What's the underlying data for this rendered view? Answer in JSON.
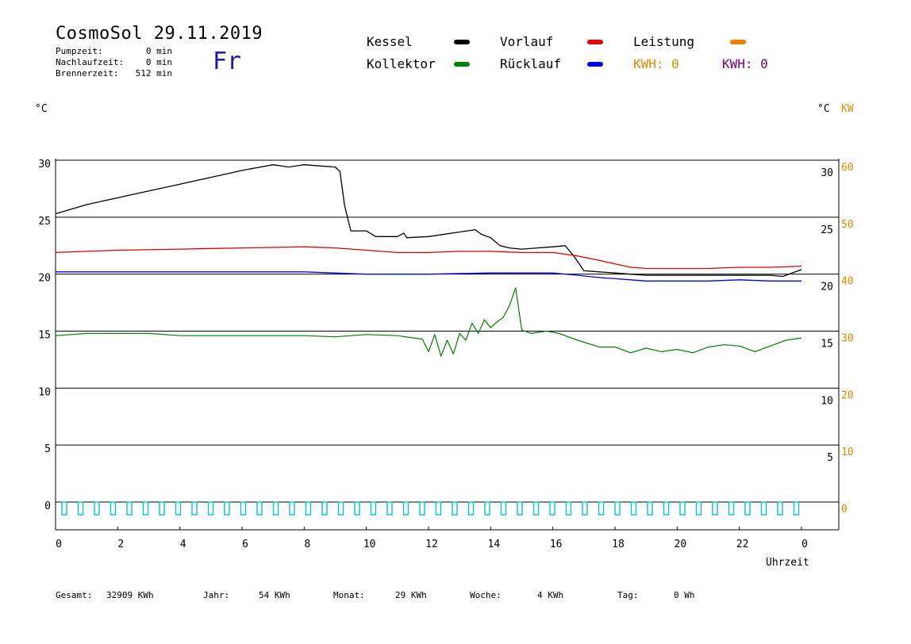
{
  "header": {
    "title": "CosmoSol 29.11.2019",
    "weekday": "Fr",
    "stats": [
      {
        "label": "Pumpzeit:",
        "value": "0 min"
      },
      {
        "label": "Nachlaufzeit:",
        "value": "0 min"
      },
      {
        "label": "Brennerzeit:",
        "value": "512 min"
      }
    ]
  },
  "legend": {
    "items": [
      {
        "label": "Kessel",
        "color": "#000000"
      },
      {
        "label": "Vorlauf",
        "color": "#e00000"
      },
      {
        "label": "Leistung",
        "color": "#f08000"
      },
      {
        "label": "Kollektor",
        "color": "#008000"
      },
      {
        "label": "Rücklauf",
        "color": "#0000e0"
      }
    ],
    "kwh_orange": {
      "text": "KWH: 0",
      "color": "#e08a00"
    },
    "kwh_purple": {
      "text": "KWH: 0",
      "color": "#800080"
    }
  },
  "axes": {
    "left_unit": "°C",
    "right_unit": "°C",
    "right_unit2": "KW",
    "x_label": "Uhrzeit",
    "right2_color": "#e08a00"
  },
  "footer": [
    {
      "label": "Gesamt:",
      "value": "32909 KWh"
    },
    {
      "label": "Jahr:",
      "value": "54 KWh"
    },
    {
      "label": "Monat:",
      "value": "29 KWh"
    },
    {
      "label": "Woche:",
      "value": "4 KWh"
    },
    {
      "label": "Tag:",
      "value": "0 Wh"
    }
  ],
  "chart_data": {
    "type": "line",
    "xlabel": "Uhrzeit",
    "ylabel": "°C",
    "xlim": [
      0,
      24
    ],
    "ylim": [
      -2,
      30
    ],
    "y2lim": [
      -4,
      60
    ],
    "grid": true,
    "x_ticks": [
      "0",
      "2",
      "4",
      "6",
      "8",
      "10",
      "12",
      "14",
      "16",
      "18",
      "20",
      "22",
      "0"
    ],
    "y_ticks_left": [
      "0",
      "5",
      "10",
      "15",
      "20",
      "25",
      "30"
    ],
    "y_ticks_right": [
      "5",
      "10",
      "15",
      "20",
      "25",
      "30"
    ],
    "y2_ticks": [
      "0",
      "10",
      "20",
      "30",
      "40",
      "50",
      "60"
    ],
    "series": [
      {
        "name": "Kessel",
        "color": "#000000",
        "x": [
          0,
          0.5,
          1,
          2,
          3,
          4,
          5,
          6,
          7,
          7.5,
          8,
          8.5,
          9,
          9.15,
          9.3,
          9.5,
          10,
          10.3,
          11,
          11.2,
          11.3,
          12,
          13,
          13.5,
          13.7,
          14,
          14.3,
          14.6,
          15,
          15.5,
          16,
          16.4,
          16.7,
          17,
          17.5,
          18,
          18.5,
          19,
          20,
          21,
          22,
          23,
          23.4,
          24
        ],
        "y": [
          25.3,
          25.7,
          26.1,
          26.7,
          27.3,
          27.9,
          28.5,
          29.1,
          29.6,
          29.4,
          29.6,
          29.5,
          29.4,
          29.0,
          26.0,
          23.8,
          23.8,
          23.3,
          23.3,
          23.6,
          23.2,
          23.3,
          23.7,
          23.9,
          23.5,
          23.2,
          22.5,
          22.3,
          22.2,
          22.3,
          22.4,
          22.5,
          21.5,
          20.3,
          20.2,
          20.1,
          20.0,
          19.9,
          19.9,
          19.9,
          19.9,
          19.9,
          19.8,
          20.4
        ]
      },
      {
        "name": "Vorlauf",
        "color": "#e00000",
        "x": [
          0,
          1,
          2,
          4,
          6,
          8,
          9,
          10,
          11,
          12,
          13,
          14,
          15,
          16,
          16.8,
          17.5,
          18,
          18.5,
          19,
          20,
          21,
          22,
          23,
          24
        ],
        "y": [
          21.9,
          22.0,
          22.1,
          22.2,
          22.3,
          22.4,
          22.3,
          22.1,
          21.9,
          21.9,
          22.0,
          22.0,
          21.9,
          21.9,
          21.6,
          21.2,
          20.9,
          20.6,
          20.5,
          20.5,
          20.5,
          20.6,
          20.6,
          20.7
        ]
      },
      {
        "name": "Rücklauf",
        "color": "#0000e0",
        "x": [
          0,
          2,
          4,
          6,
          8,
          10,
          12,
          14,
          16,
          16.8,
          17.5,
          18,
          18.5,
          19,
          20,
          21,
          22,
          23,
          24
        ],
        "y": [
          20.2,
          20.2,
          20.2,
          20.2,
          20.2,
          20.0,
          20.0,
          20.1,
          20.1,
          19.9,
          19.7,
          19.6,
          19.5,
          19.4,
          19.4,
          19.4,
          19.5,
          19.4,
          19.4
        ]
      },
      {
        "name": "Kollektor",
        "color": "#008000",
        "x": [
          0,
          0.5,
          1,
          2,
          3,
          4,
          5,
          6,
          7,
          8,
          9,
          10,
          11,
          11.8,
          12,
          12.2,
          12.4,
          12.6,
          12.8,
          13.0,
          13.2,
          13.4,
          13.6,
          13.8,
          14.0,
          14.2,
          14.4,
          14.6,
          14.8,
          15.0,
          15.3,
          15.8,
          16.2,
          16.8,
          17.5,
          18,
          18.5,
          19,
          19.5,
          20,
          20.5,
          21,
          21.5,
          22,
          22.5,
          23,
          23.5,
          24
        ],
        "y": [
          14.6,
          14.7,
          14.8,
          14.8,
          14.8,
          14.6,
          14.6,
          14.6,
          14.6,
          14.6,
          14.5,
          14.7,
          14.6,
          14.3,
          13.2,
          14.7,
          12.8,
          14.2,
          13.0,
          14.8,
          14.2,
          15.7,
          14.8,
          16.0,
          15.3,
          15.8,
          16.2,
          17.2,
          18.8,
          15.1,
          14.8,
          15.0,
          14.8,
          14.2,
          13.6,
          13.6,
          13.1,
          13.5,
          13.2,
          13.4,
          13.1,
          13.6,
          13.8,
          13.7,
          13.2,
          13.7,
          14.2,
          14.4
        ]
      },
      {
        "name": "Leistung",
        "color": "#f08000",
        "x": [
          0,
          24
        ],
        "y": [
          0,
          0
        ]
      }
    ]
  }
}
